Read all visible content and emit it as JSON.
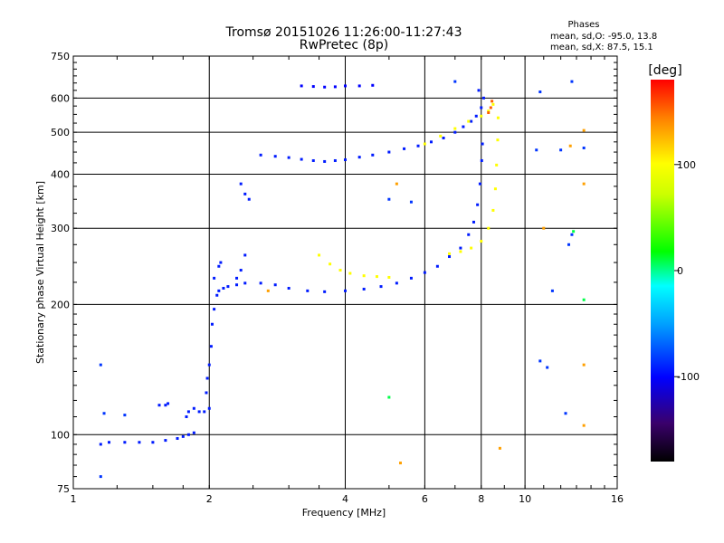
{
  "chart_data": {
    "type": "scatter",
    "title": "Tromsø 20151026 11:26:00-11:27:43",
    "subtitle": "RwPretec (8p)",
    "xlabel": "Frequency [MHz]",
    "ylabel": "Stationary phase Virtual Height [km]",
    "x_scale": "log2",
    "y_scale": "log",
    "xlim": [
      1,
      16
    ],
    "ylim": [
      75,
      750
    ],
    "x_ticks": [
      1,
      2,
      4,
      6,
      8,
      10,
      16
    ],
    "x_tick_labels": [
      "1",
      "2",
      "4",
      "6",
      "8",
      "10",
      "16"
    ],
    "y_ticks": [
      75,
      100,
      200,
      300,
      400,
      500,
      600,
      750
    ],
    "y_tick_labels": [
      "75",
      "100",
      "200",
      "300",
      "400",
      "500",
      "600",
      "750"
    ],
    "grid": true,
    "phase_info": {
      "title": "Phases",
      "line_o": "mean, sd,O: -95.0, 13.8",
      "line_x": "mean, sd,X:  87.5, 15.1"
    },
    "colorbar": {
      "label": "[deg]",
      "range": [
        -180,
        180
      ],
      "ticks": [
        100,
        0,
        -100
      ],
      "tick_labels": [
        "100",
        "0",
        "-100"
      ]
    },
    "series": [
      {
        "group": "o-trace",
        "phase": -100,
        "points": [
          [
            1.15,
            95
          ],
          [
            1.2,
            96
          ],
          [
            1.3,
            96
          ],
          [
            1.4,
            96
          ],
          [
            1.5,
            96
          ],
          [
            1.6,
            97
          ],
          [
            1.7,
            98
          ],
          [
            1.75,
            99
          ],
          [
            1.8,
            100
          ],
          [
            1.85,
            101
          ],
          [
            1.78,
            110
          ],
          [
            1.8,
            113
          ],
          [
            1.85,
            115
          ],
          [
            1.9,
            113
          ],
          [
            1.95,
            113
          ],
          [
            2.0,
            115
          ],
          [
            1.97,
            125
          ],
          [
            1.98,
            135
          ],
          [
            2.0,
            145
          ],
          [
            2.02,
            160
          ],
          [
            2.03,
            180
          ],
          [
            2.05,
            195
          ],
          [
            2.08,
            210
          ],
          [
            2.1,
            215
          ],
          [
            2.15,
            218
          ],
          [
            2.2,
            220
          ],
          [
            2.3,
            222
          ],
          [
            2.4,
            224
          ],
          [
            2.6,
            224
          ],
          [
            2.8,
            222
          ],
          [
            3.0,
            218
          ],
          [
            3.3,
            215
          ],
          [
            3.6,
            214
          ],
          [
            4.0,
            215
          ],
          [
            4.4,
            217
          ],
          [
            4.8,
            220
          ],
          [
            5.2,
            224
          ],
          [
            5.6,
            230
          ],
          [
            6.0,
            237
          ],
          [
            6.4,
            245
          ],
          [
            6.8,
            258
          ],
          [
            7.2,
            270
          ],
          [
            7.5,
            290
          ],
          [
            7.7,
            310
          ],
          [
            7.85,
            340
          ],
          [
            7.95,
            380
          ],
          [
            8.02,
            430
          ],
          [
            8.05,
            470
          ],
          [
            1.55,
            117
          ],
          [
            1.6,
            117
          ],
          [
            1.62,
            118
          ],
          [
            2.05,
            230
          ],
          [
            2.1,
            245
          ],
          [
            2.12,
            250
          ],
          [
            2.3,
            230
          ],
          [
            2.35,
            240
          ],
          [
            2.4,
            260
          ]
        ]
      },
      {
        "group": "o-f2-upper",
        "phase": -100,
        "points": [
          [
            2.6,
            443
          ],
          [
            2.8,
            440
          ],
          [
            3.0,
            437
          ],
          [
            3.2,
            433
          ],
          [
            3.4,
            430
          ],
          [
            3.6,
            428
          ],
          [
            3.8,
            430
          ],
          [
            4.0,
            432
          ],
          [
            4.3,
            438
          ],
          [
            4.6,
            443
          ],
          [
            5.0,
            450
          ],
          [
            5.4,
            458
          ],
          [
            5.8,
            465
          ],
          [
            6.2,
            475
          ],
          [
            6.6,
            485
          ],
          [
            7.0,
            500
          ],
          [
            7.3,
            515
          ],
          [
            7.6,
            530
          ],
          [
            7.8,
            545
          ],
          [
            8.0,
            570
          ],
          [
            8.1,
            600
          ],
          [
            7.9,
            625
          ],
          [
            2.35,
            380
          ],
          [
            2.4,
            360
          ],
          [
            2.45,
            350
          ]
        ]
      },
      {
        "group": "x-trace",
        "phase": 100,
        "points": [
          [
            3.5,
            260
          ],
          [
            3.7,
            248
          ],
          [
            3.9,
            240
          ],
          [
            4.1,
            236
          ],
          [
            4.4,
            233
          ],
          [
            4.7,
            232
          ],
          [
            5.0,
            231
          ],
          [
            6.8,
            262
          ],
          [
            7.2,
            265
          ],
          [
            7.6,
            270
          ],
          [
            8.0,
            280
          ],
          [
            8.3,
            300
          ],
          [
            8.5,
            330
          ],
          [
            8.6,
            370
          ],
          [
            8.65,
            420
          ],
          [
            8.7,
            480
          ],
          [
            8.72,
            540
          ],
          [
            6.0,
            470
          ],
          [
            6.5,
            490
          ],
          [
            7.0,
            510
          ],
          [
            7.5,
            530
          ],
          [
            8.0,
            545
          ],
          [
            8.3,
            560
          ],
          [
            8.5,
            580
          ]
        ]
      },
      {
        "group": "x-trace-red",
        "phase": 150,
        "points": [
          [
            8.3,
            555
          ],
          [
            8.4,
            570
          ],
          [
            8.45,
            590
          ]
        ]
      },
      {
        "group": "sporadic-e",
        "phase": -110,
        "points": [
          [
            3.2,
            640
          ],
          [
            3.4,
            638
          ],
          [
            3.6,
            636
          ],
          [
            3.8,
            637
          ],
          [
            4.0,
            640
          ],
          [
            4.3,
            640
          ],
          [
            4.6,
            642
          ]
        ]
      },
      {
        "group": "noise",
        "phase": -90,
        "points": [
          [
            1.15,
            145
          ],
          [
            1.17,
            112
          ],
          [
            1.3,
            111
          ],
          [
            1.15,
            80
          ],
          [
            10.8,
            620
          ],
          [
            12.7,
            655
          ],
          [
            10.6,
            455
          ],
          [
            12.0,
            455
          ],
          [
            13.5,
            460
          ],
          [
            11.5,
            215
          ],
          [
            12.5,
            275
          ],
          [
            12.7,
            290
          ],
          [
            10.8,
            148
          ],
          [
            11.2,
            143
          ],
          [
            12.3,
            112
          ],
          [
            5.0,
            350
          ],
          [
            5.6,
            345
          ],
          [
            7.0,
            655
          ]
        ]
      },
      {
        "group": "noise-warm",
        "phase": 130,
        "points": [
          [
            13.5,
            505
          ],
          [
            12.6,
            465
          ],
          [
            13.5,
            380
          ],
          [
            13.5,
            145
          ],
          [
            13.5,
            105
          ],
          [
            5.3,
            86
          ],
          [
            8.8,
            93
          ],
          [
            5.2,
            380
          ],
          [
            11.0,
            300
          ],
          [
            2.7,
            215
          ]
        ]
      },
      {
        "group": "noise-green",
        "phase": 10,
        "points": [
          [
            5.0,
            122
          ],
          [
            12.8,
            295
          ],
          [
            13.5,
            205
          ]
        ]
      }
    ]
  }
}
